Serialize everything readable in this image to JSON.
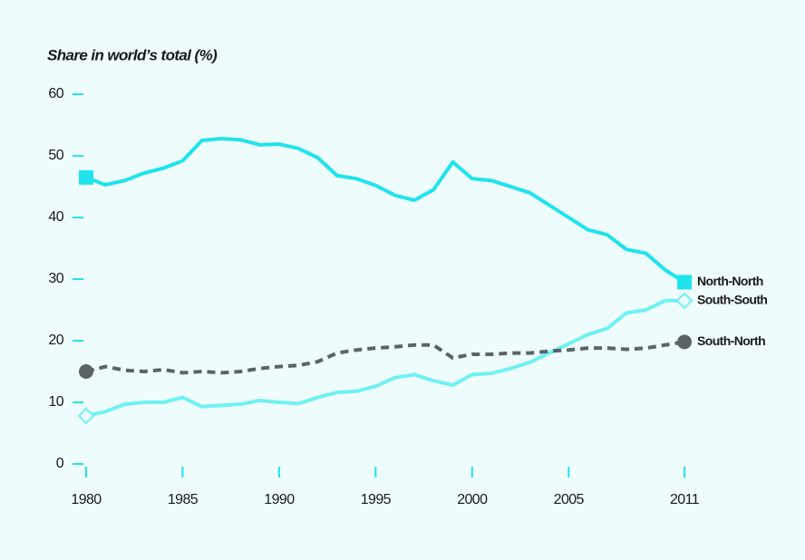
{
  "chart_data": {
    "type": "line",
    "y_label": "Share in world’s total (%)",
    "x": [
      1980,
      1981,
      1982,
      1983,
      1984,
      1985,
      1986,
      1987,
      1988,
      1989,
      1990,
      1991,
      1992,
      1993,
      1994,
      1995,
      1996,
      1997,
      1998,
      1999,
      2000,
      2001,
      2002,
      2003,
      2004,
      2005,
      2006,
      2007,
      2008,
      2009,
      2010,
      2011
    ],
    "xlim": [
      1980,
      2011
    ],
    "xticks": [
      1980,
      1985,
      1990,
      1995,
      2000,
      2005,
      2011
    ],
    "ylim": [
      0,
      60
    ],
    "yticks": [
      0,
      10,
      20,
      30,
      40,
      50,
      60
    ],
    "series": [
      {
        "name": "North-North",
        "color": "#1fe3ec",
        "line_style": "solid",
        "marker": "square",
        "values": [
          46.5,
          45.3,
          46.0,
          47.2,
          48.0,
          49.2,
          52.5,
          52.8,
          52.6,
          51.8,
          51.9,
          51.2,
          49.7,
          46.8,
          46.3,
          45.2,
          43.6,
          42.8,
          44.5,
          49.0,
          46.3,
          46.0,
          45.0,
          44.0,
          42.0,
          40.0,
          38.0,
          37.2,
          34.8,
          34.2,
          31.5,
          29.5
        ]
      },
      {
        "name": "South-South",
        "color": "#6ff1f3",
        "line_style": "solid",
        "marker": "diamond",
        "values": [
          7.8,
          8.5,
          9.7,
          10.0,
          10.0,
          10.8,
          9.3,
          9.5,
          9.7,
          10.3,
          10.0,
          9.8,
          10.8,
          11.6,
          11.8,
          12.6,
          14.0,
          14.5,
          13.5,
          12.8,
          14.5,
          14.7,
          15.5,
          16.5,
          18.0,
          19.5,
          21.0,
          22.0,
          24.5,
          25.0,
          26.5,
          26.5
        ]
      },
      {
        "name": "South-North",
        "color": "#5a6464",
        "line_style": "dashed",
        "marker": "circle",
        "values": [
          15.0,
          15.8,
          15.2,
          15.0,
          15.3,
          14.8,
          15.0,
          14.8,
          15.0,
          15.5,
          15.8,
          16.0,
          16.6,
          18.0,
          18.5,
          18.8,
          19.0,
          19.3,
          19.3,
          17.2,
          17.8,
          17.8,
          18.0,
          18.0,
          18.3,
          18.5,
          18.8,
          18.8,
          18.6,
          18.8,
          19.3,
          19.8
        ]
      }
    ]
  }
}
